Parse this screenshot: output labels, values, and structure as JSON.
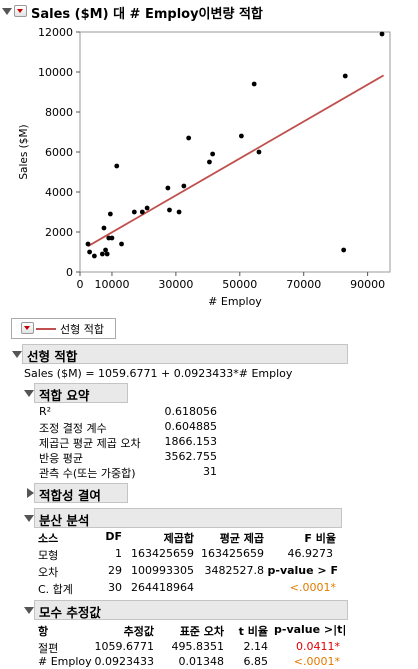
{
  "header": {
    "title": "Sales ($M) 대 # Employ이변량 적합"
  },
  "chart_data": {
    "type": "scatter",
    "xlabel": "# Employ",
    "ylabel": "Sales ($M)",
    "xlim": [
      0,
      97000
    ],
    "ylim": [
      0,
      12000
    ],
    "xticks": [
      0,
      10000,
      30000,
      50000,
      70000,
      90000
    ],
    "xtick_labels": [
      "0",
      "10000",
      "30000",
      "50000",
      "70000",
      "90000"
    ],
    "yticks": [
      0,
      2000,
      4000,
      6000,
      8000,
      10000,
      12000
    ],
    "ytick_labels": [
      "0",
      "2000",
      "4000",
      "6000",
      "8000",
      "10000",
      "12000"
    ],
    "points": [
      [
        2500,
        1400
      ],
      [
        3000,
        1000
      ],
      [
        4500,
        800
      ],
      [
        7000,
        900
      ],
      [
        7500,
        2200
      ],
      [
        8000,
        1100
      ],
      [
        8500,
        900
      ],
      [
        9000,
        1700
      ],
      [
        9500,
        2900
      ],
      [
        10000,
        1700
      ],
      [
        11500,
        5300
      ],
      [
        13000,
        1400
      ],
      [
        17000,
        3000
      ],
      [
        19500,
        3000
      ],
      [
        21000,
        3200
      ],
      [
        27500,
        4200
      ],
      [
        28000,
        3100
      ],
      [
        31000,
        3000
      ],
      [
        32500,
        4300
      ],
      [
        34000,
        6700
      ],
      [
        40500,
        5500
      ],
      [
        41500,
        5900
      ],
      [
        50500,
        6800
      ],
      [
        54500,
        9400
      ],
      [
        56000,
        6000
      ],
      [
        82500,
        1100
      ],
      [
        83000,
        9800
      ],
      [
        94500,
        11900
      ]
    ],
    "fit_line": {
      "intercept": 1059.6771,
      "slope": 0.0923433,
      "color": "#c0504d"
    }
  },
  "legend": {
    "fit_label": "선형 적합"
  },
  "linear_fit": {
    "title": "선형 적합",
    "equation": "Sales ($M) = 1059.6771 + 0.0923433*# Employ"
  },
  "summary_of_fit": {
    "title": "적합 요약",
    "rows": [
      {
        "label": "R²",
        "value": "0.618056"
      },
      {
        "label": "조정 결정 계수",
        "value": "0.604885"
      },
      {
        "label": "제곱근 평균 제곱 오차",
        "value": "1866.153"
      },
      {
        "label": "반응 평균",
        "value": "3562.755"
      },
      {
        "label": "관측 수(또는 가중합)",
        "value": "31"
      }
    ]
  },
  "lack_of_fit": {
    "title": "적합성 결여"
  },
  "anova": {
    "title": "분산 분석",
    "headers": [
      "소스",
      "DF",
      "제곱합",
      "평균 제곱",
      "F 비율"
    ],
    "model": [
      "모형",
      "1",
      "163425659",
      "163425659",
      "46.9273"
    ],
    "error": [
      "오차",
      "29",
      "100993305",
      "3482527.8"
    ],
    "pvalue_label": "p-value > F",
    "ctotal": [
      "C. 합계",
      "30",
      "264418964"
    ],
    "pvalue": "<.0001*"
  },
  "estimates": {
    "title": "모수 추정값",
    "headers": [
      "항",
      "추정값",
      "표준 오차",
      "t 비율",
      "p-value >|t|"
    ],
    "rows": [
      {
        "term": "절편",
        "est": "1059.6771",
        "se": "495.8351",
        "t": "2.14",
        "p": "0.0411*"
      },
      {
        "term": "# Employ",
        "est": "0.0923433",
        "se": "0.01348",
        "t": "6.85",
        "p": "<.0001*"
      }
    ]
  }
}
